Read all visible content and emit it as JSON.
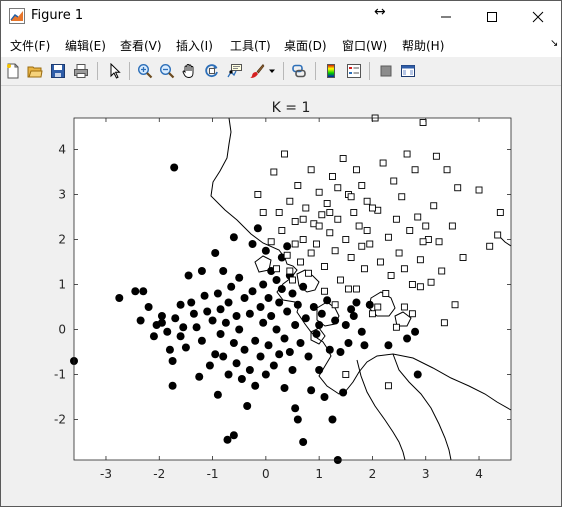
{
  "window": {
    "title": "Figure 1"
  },
  "menu": [
    {
      "label": "文件(F)",
      "name": "menu-file"
    },
    {
      "label": "编辑(E)",
      "name": "menu-edit"
    },
    {
      "label": "查看(V)",
      "name": "menu-view"
    },
    {
      "label": "插入(I)",
      "name": "menu-insert"
    },
    {
      "label": "工具(T)",
      "name": "menu-tools"
    },
    {
      "label": "桌面(D)",
      "name": "menu-desktop"
    },
    {
      "label": "窗口(W)",
      "name": "menu-window"
    },
    {
      "label": "帮助(H)",
      "name": "menu-help"
    }
  ],
  "toolbar": {
    "icons": [
      "new-figure-icon",
      "open-folder-icon",
      "save-icon",
      "print-icon",
      "edit-pointer-icon",
      "zoom-in-icon",
      "zoom-out-icon",
      "pan-hand-icon",
      "rotate-3d-icon",
      "data-cursor-icon",
      "brush-icon",
      "link-plot-icon",
      "colorbar-icon",
      "legend-icon",
      "hide-plot-tools-icon",
      "show-plot-tools-icon"
    ]
  },
  "chart_data": {
    "type": "scatter",
    "title": "K = 1",
    "xlabel": "",
    "ylabel": "",
    "xlim": [
      -3.6,
      4.6
    ],
    "ylim": [
      -2.9,
      4.7
    ],
    "xticks": [
      -3,
      -2,
      -1,
      0,
      1,
      2,
      3,
      4
    ],
    "yticks": [
      -2,
      -1,
      0,
      1,
      2,
      3,
      4
    ],
    "grid": false,
    "legend": "none",
    "colors": {
      "filled": "#000000",
      "open_fill": "#ffffff",
      "open_stroke": "#000000"
    },
    "series": [
      {
        "marker": "filled-circle",
        "points": [
          [
            -3.6,
            -0.7
          ],
          [
            -2.75,
            0.7
          ],
          [
            -2.45,
            0.85
          ],
          [
            -2.35,
            0.2
          ],
          [
            -2.3,
            0.85
          ],
          [
            -2.2,
            0.5
          ],
          [
            -2.1,
            -0.15
          ],
          [
            -2.05,
            0.1
          ],
          [
            -1.95,
            0.15
          ],
          [
            -1.85,
            -0.05
          ],
          [
            -1.8,
            -0.45
          ],
          [
            -1.75,
            -0.7
          ],
          [
            -1.75,
            -1.25
          ],
          [
            -1.72,
            3.6
          ],
          [
            -1.7,
            0.25
          ],
          [
            -1.6,
            0.55
          ],
          [
            -1.55,
            0.05
          ],
          [
            -1.5,
            -0.4
          ],
          [
            -1.45,
            1.2
          ],
          [
            -1.4,
            0.6
          ],
          [
            -1.35,
            0.35
          ],
          [
            -1.3,
            0.05
          ],
          [
            -1.25,
            -1.05
          ],
          [
            -1.2,
            1.3
          ],
          [
            -1.2,
            -0.25
          ],
          [
            -1.15,
            0.75
          ],
          [
            -1.1,
            0.4
          ],
          [
            -1.05,
            -0.8
          ],
          [
            -1.0,
            0.2
          ],
          [
            -0.95,
            1.7
          ],
          [
            -0.95,
            -0.55
          ],
          [
            -0.9,
            0.8
          ],
          [
            -0.9,
            -1.45
          ],
          [
            -0.85,
            0.45
          ],
          [
            -0.85,
            -0.1
          ],
          [
            -0.8,
            1.3
          ],
          [
            -0.8,
            -0.6
          ],
          [
            -0.75,
            0.15
          ],
          [
            -0.72,
            -2.45
          ],
          [
            -0.7,
            0.6
          ],
          [
            -0.7,
            -1.0
          ],
          [
            -0.65,
            0.95
          ],
          [
            -0.6,
            2.05
          ],
          [
            -0.6,
            -0.3
          ],
          [
            -0.6,
            -2.35
          ],
          [
            -0.55,
            0.3
          ],
          [
            -0.55,
            -0.75
          ],
          [
            -0.5,
            1.15
          ],
          [
            -0.5,
            0.0
          ],
          [
            -0.45,
            -1.1
          ],
          [
            -0.4,
            0.7
          ],
          [
            -0.4,
            -0.45
          ],
          [
            -0.35,
            -1.7
          ],
          [
            -0.3,
            0.35
          ],
          [
            -0.3,
            -0.9
          ],
          [
            -0.25,
            0.85
          ],
          [
            -0.2,
            -0.25
          ],
          [
            -0.2,
            -1.25
          ],
          [
            -0.15,
            2.25
          ],
          [
            -0.1,
            0.5
          ],
          [
            -0.1,
            -0.6
          ],
          [
            -0.05,
            1.0
          ],
          [
            -0.05,
            0.15
          ],
          [
            0.0,
            -1.0
          ],
          [
            0.0,
            1.75
          ],
          [
            0.05,
            0.7
          ],
          [
            0.05,
            -0.35
          ],
          [
            0.1,
            1.3
          ],
          [
            0.1,
            0.3
          ],
          [
            0.15,
            -0.8
          ],
          [
            0.2,
            1.1
          ],
          [
            0.2,
            0.0
          ],
          [
            0.25,
            0.6
          ],
          [
            0.25,
            -0.55
          ],
          [
            0.3,
            1.6
          ],
          [
            0.3,
            0.9
          ],
          [
            0.35,
            -0.2
          ],
          [
            0.35,
            -1.3
          ],
          [
            0.4,
            0.4
          ],
          [
            0.45,
            1.2
          ],
          [
            0.45,
            -0.5
          ],
          [
            0.5,
            0.8
          ],
          [
            0.5,
            -0.9
          ],
          [
            0.55,
            0.1
          ],
          [
            0.55,
            -1.75
          ],
          [
            0.6,
            0.55
          ],
          [
            0.6,
            -2.0
          ],
          [
            0.65,
            -0.3
          ],
          [
            0.7,
            0.95
          ],
          [
            0.7,
            -2.5
          ],
          [
            0.75,
            0.25
          ],
          [
            0.8,
            -0.6
          ],
          [
            0.85,
            -1.35
          ],
          [
            0.9,
            0.5
          ],
          [
            0.95,
            -0.1
          ],
          [
            1.0,
            -0.9
          ],
          [
            1.05,
            0.35
          ],
          [
            1.1,
            -1.5
          ],
          [
            1.15,
            0.65
          ],
          [
            1.2,
            -0.45
          ],
          [
            1.25,
            -2.0
          ],
          [
            1.3,
            0.2
          ],
          [
            1.35,
            -2.95
          ],
          [
            1.4,
            -0.5
          ],
          [
            1.45,
            -1.4
          ],
          [
            1.5,
            0.1
          ],
          [
            1.55,
            -0.3
          ],
          [
            1.6,
            0.45
          ],
          [
            1.7,
            0.6
          ],
          [
            1.8,
            -0.05
          ],
          [
            1.85,
            -0.35
          ],
          [
            1.95,
            0.55
          ],
          [
            2.3,
            -0.35
          ],
          [
            2.65,
            -0.2
          ],
          [
            2.8,
            -0.05
          ],
          [
            2.85,
            -1.0
          ],
          [
            -1.95,
            0.3
          ],
          [
            -1.6,
            -0.15
          ],
          [
            -0.25,
            1.9
          ],
          [
            0.4,
            1.85
          ],
          [
            1.0,
            0.1
          ],
          [
            1.65,
            0.3
          ]
        ]
      },
      {
        "marker": "open-square",
        "points": [
          [
            4.4,
            2.6
          ],
          [
            4.35,
            2.1
          ],
          [
            4.2,
            1.85
          ],
          [
            4.0,
            3.1
          ],
          [
            3.7,
            1.6
          ],
          [
            3.55,
            0.55
          ],
          [
            3.35,
            0.15
          ],
          [
            3.3,
            1.3
          ],
          [
            2.95,
            4.6
          ],
          [
            2.85,
            2.5
          ],
          [
            2.8,
            3.55
          ],
          [
            2.75,
            1.0
          ],
          [
            2.7,
            2.2
          ],
          [
            2.65,
            3.9
          ],
          [
            2.6,
            0.5
          ],
          [
            2.55,
            2.95
          ],
          [
            2.5,
            1.7
          ],
          [
            2.45,
            2.45
          ],
          [
            2.4,
            3.3
          ],
          [
            2.35,
            1.2
          ],
          [
            2.3,
            2.05
          ],
          [
            2.25,
            0.8
          ],
          [
            2.2,
            3.7
          ],
          [
            2.15,
            1.5
          ],
          [
            2.1,
            2.65
          ],
          [
            2.05,
            4.75
          ],
          [
            2.0,
            0.35
          ],
          [
            1.95,
            1.9
          ],
          [
            1.9,
            2.85
          ],
          [
            1.85,
            1.35
          ],
          [
            1.8,
            3.2
          ],
          [
            1.75,
            2.3
          ],
          [
            1.7,
            0.9
          ],
          [
            1.65,
            2.6
          ],
          [
            1.6,
            1.6
          ],
          [
            1.55,
            3.0
          ],
          [
            1.5,
            2.0
          ],
          [
            1.45,
            3.8
          ],
          [
            1.4,
            1.1
          ],
          [
            1.35,
            2.45
          ],
          [
            1.3,
            1.75
          ],
          [
            1.25,
            3.4
          ],
          [
            1.2,
            2.15
          ],
          [
            1.15,
            2.8
          ],
          [
            1.1,
            1.4
          ],
          [
            1.05,
            2.55
          ],
          [
            1.0,
            3.05
          ],
          [
            0.95,
            1.9
          ],
          [
            0.9,
            2.35
          ],
          [
            0.85,
            3.55
          ],
          [
            0.8,
            1.25
          ],
          [
            0.75,
            2.7
          ],
          [
            0.7,
            2.0
          ],
          [
            0.65,
            1.5
          ],
          [
            0.6,
            3.2
          ],
          [
            0.55,
            2.4
          ],
          [
            0.5,
            1.1
          ],
          [
            0.45,
            2.85
          ],
          [
            0.4,
            1.65
          ],
          [
            0.35,
            3.9
          ],
          [
            0.3,
            2.2
          ],
          [
            0.25,
            2.6
          ],
          [
            0.2,
            1.35
          ],
          [
            0.15,
            3.5
          ],
          [
            0.1,
            1.95
          ],
          [
            -0.05,
            2.6
          ],
          [
            -0.15,
            3.0
          ],
          [
            2.3,
            -1.25
          ],
          [
            1.5,
            -1.0
          ],
          [
            3.05,
            2.0
          ],
          [
            3.15,
            2.75
          ],
          [
            3.25,
            1.95
          ],
          [
            3.4,
            3.55
          ],
          [
            3.5,
            2.3
          ],
          [
            3.6,
            3.15
          ],
          [
            3.2,
            3.85
          ],
          [
            3.1,
            1.05
          ],
          [
            2.95,
            1.95
          ],
          [
            2.9,
            1.55
          ],
          [
            3.0,
            2.3
          ],
          [
            2.0,
            2.7
          ],
          [
            1.9,
            2.2
          ],
          [
            1.8,
            1.85
          ],
          [
            1.7,
            3.55
          ],
          [
            1.6,
            2.95
          ],
          [
            1.35,
            3.15
          ],
          [
            1.2,
            2.6
          ],
          [
            1.0,
            2.3
          ],
          [
            0.85,
            1.7
          ],
          [
            0.7,
            2.45
          ],
          [
            0.55,
            1.9
          ],
          [
            0.45,
            1.3
          ],
          [
            1.1,
            0.85
          ],
          [
            1.3,
            0.55
          ],
          [
            1.55,
            0.9
          ],
          [
            2.1,
            0.5
          ],
          [
            2.45,
            0.05
          ],
          [
            2.75,
            0.35
          ],
          [
            2.9,
            0.95
          ],
          [
            2.6,
            1.35
          ]
        ]
      }
    ]
  }
}
